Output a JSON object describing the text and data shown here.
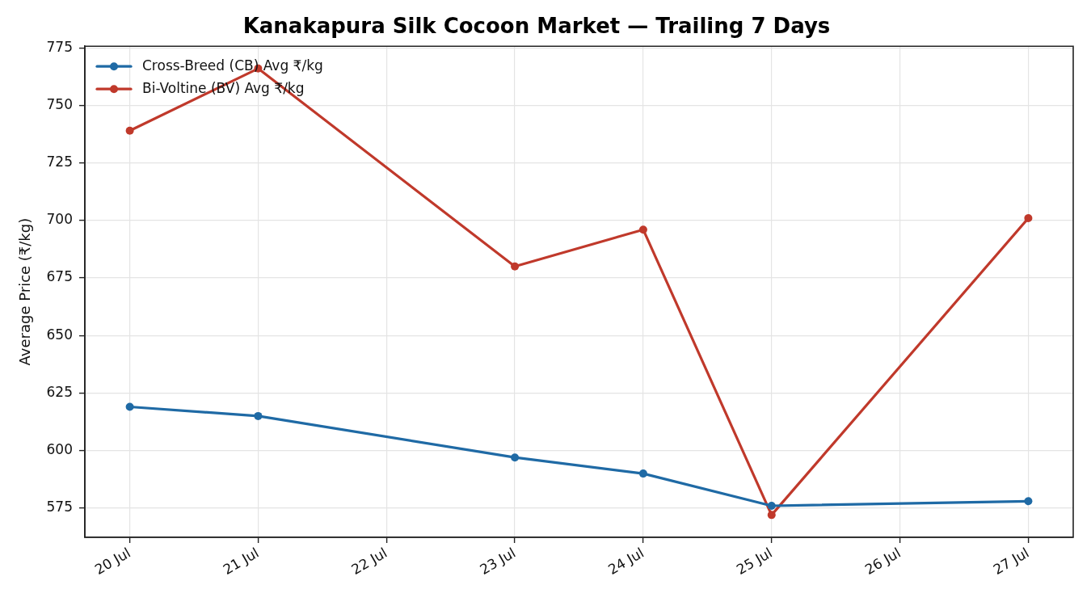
{
  "chart_data": {
    "type": "line",
    "title": "Kanakapura Silk Cocoon Market — Trailing 7 Days",
    "ylabel": "Average Price (₹/kg)",
    "x": [
      "--07-20",
      "--07-21",
      "--07-23",
      "--07-24",
      "--07-25",
      "--07-27"
    ],
    "series": [
      {
        "name": "Cross-Breed (CB) Avg ₹/kg",
        "color": "#1f6aa5",
        "values": [
          619,
          615,
          597,
          590,
          576,
          578
        ]
      },
      {
        "name": "Bi-Voltine (BV) Avg ₹/kg",
        "color": "#c0392b",
        "values": [
          739,
          766,
          680,
          696,
          572,
          701
        ]
      }
    ],
    "xlim": [
      "--07-19T15:36",
      "--07-27T08:24"
    ],
    "xticks": [
      {
        "value": "--07-20",
        "label": "20 Jul"
      },
      {
        "value": "--07-21",
        "label": "21 Jul"
      },
      {
        "value": "--07-22",
        "label": "22 Jul"
      },
      {
        "value": "--07-23",
        "label": "23 Jul"
      },
      {
        "value": "--07-24",
        "label": "24 Jul"
      },
      {
        "value": "--07-25",
        "label": "25 Jul"
      },
      {
        "value": "--07-26",
        "label": "26 Jul"
      },
      {
        "value": "--07-27",
        "label": "27 Jul"
      }
    ],
    "ylim": [
      562.3,
      775.7
    ],
    "yticks": [
      575,
      600,
      625,
      650,
      675,
      700,
      725,
      750,
      775
    ],
    "grid": true,
    "legend": "top left",
    "marker": "circle",
    "line_style": "solid"
  }
}
